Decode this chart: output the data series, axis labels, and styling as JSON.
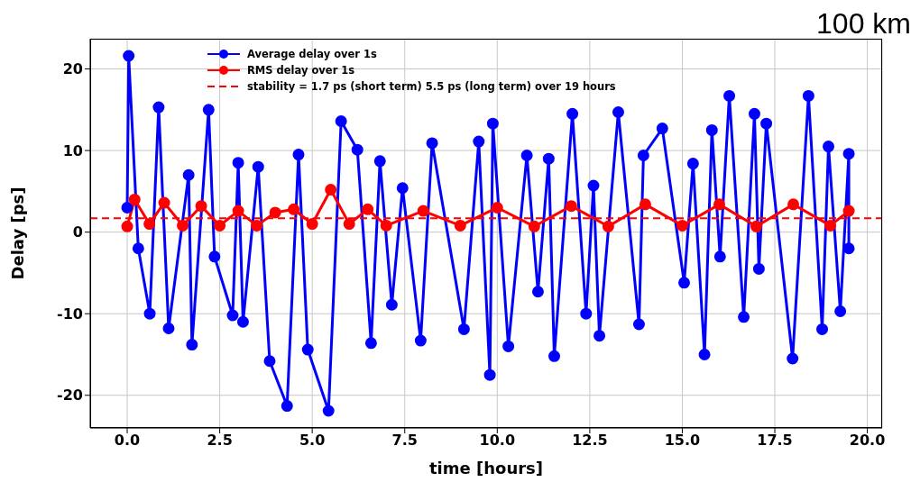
{
  "chart_data": {
    "type": "line",
    "xlabel": "time [hours]",
    "ylabel": "Delay [ps]",
    "annotations": [
      "100 km"
    ],
    "xlim": [
      -1,
      20.4
    ],
    "ylim": [
      -24,
      23.7
    ],
    "xticks": [
      {
        "value": 0,
        "label": "0.0"
      },
      {
        "value": 2.5,
        "label": "2.5"
      },
      {
        "value": 5,
        "label": "5.0"
      },
      {
        "value": 7.5,
        "label": "7.5"
      },
      {
        "value": 10,
        "label": "10.0"
      },
      {
        "value": 12.5,
        "label": "12.5"
      },
      {
        "value": 15,
        "label": "15.0"
      },
      {
        "value": 17.5,
        "label": "17.5"
      },
      {
        "value": 20,
        "label": "20.0"
      }
    ],
    "yticks": [
      -20,
      -10,
      0,
      10,
      20
    ],
    "grid": true,
    "legend": "top",
    "marker": "circle",
    "line_style": "solid",
    "series": [
      {
        "name": "Average delay over 1s",
        "color": "#0000ff",
        "x": [
          0,
          0.04,
          0.3,
          0.61,
          0.85,
          1.12,
          1.66,
          1.75,
          2.2,
          2.36,
          2.85,
          3.0,
          3.13,
          3.54,
          3.85,
          4.32,
          4.63,
          4.88,
          5.44,
          5.78,
          6.22,
          6.59,
          6.83,
          7.15,
          7.44,
          7.93,
          8.24,
          9.1,
          9.5,
          9.8,
          9.88,
          10.3,
          10.8,
          11.1,
          11.39,
          11.54,
          12.03,
          12.4,
          12.6,
          12.76,
          13.27,
          13.83,
          13.95,
          14.46,
          15.05,
          15.29,
          15.6,
          15.8,
          16.02,
          16.27,
          16.66,
          16.95,
          17.07,
          17.27,
          17.98,
          18.41,
          18.78,
          18.95,
          19.27,
          19.5,
          19.5
        ],
        "values": [
          3,
          21.6,
          -2,
          -10,
          15.3,
          -11.8,
          7,
          -13.8,
          15,
          -3,
          -10.2,
          8.5,
          -11,
          8,
          -15.8,
          -21.3,
          9.5,
          -14.4,
          -21.9,
          13.6,
          10.1,
          -13.6,
          8.7,
          -8.9,
          5.4,
          -13.3,
          10.9,
          -11.9,
          11.1,
          -17.5,
          13.3,
          -14,
          9.4,
          -7.3,
          9,
          -15.2,
          14.5,
          -10,
          5.7,
          -12.7,
          14.7,
          -11.3,
          9.4,
          12.7,
          -6.2,
          8.4,
          -15,
          12.5,
          -3,
          16.7,
          -10.4,
          14.5,
          -4.5,
          13.3,
          -15.5,
          16.7,
          -11.9,
          10.5,
          -9.7,
          9.6,
          -2
        ]
      },
      {
        "name": "RMS delay over 1s",
        "color": "#ff0000",
        "x": [
          0,
          0.2,
          0.6,
          1.0,
          1.5,
          2.0,
          2.5,
          3.0,
          3.5,
          4.0,
          4.5,
          5.0,
          5.5,
          6.0,
          6.5,
          7.0,
          8.0,
          9.0,
          10.0,
          11.0,
          12.0,
          13.0,
          14.0,
          15.0,
          16.0,
          17.0,
          18.0,
          19.0,
          19.5
        ],
        "values": [
          0.7,
          4,
          1,
          3.6,
          0.8,
          3.2,
          0.8,
          2.6,
          0.8,
          2.4,
          2.8,
          1,
          5.2,
          1,
          2.8,
          0.8,
          2.6,
          0.8,
          3,
          0.7,
          3.2,
          0.7,
          3.4,
          0.8,
          3.4,
          0.7,
          3.4,
          0.8,
          2.6
        ]
      }
    ],
    "ref_lines": [
      {
        "axis": "y",
        "value": 1.7,
        "label": "stability = 1.7 ps (short term) 5.5 ps (long term) over 19 hours",
        "color": "#ff0000",
        "line_style": "dashed"
      }
    ]
  }
}
